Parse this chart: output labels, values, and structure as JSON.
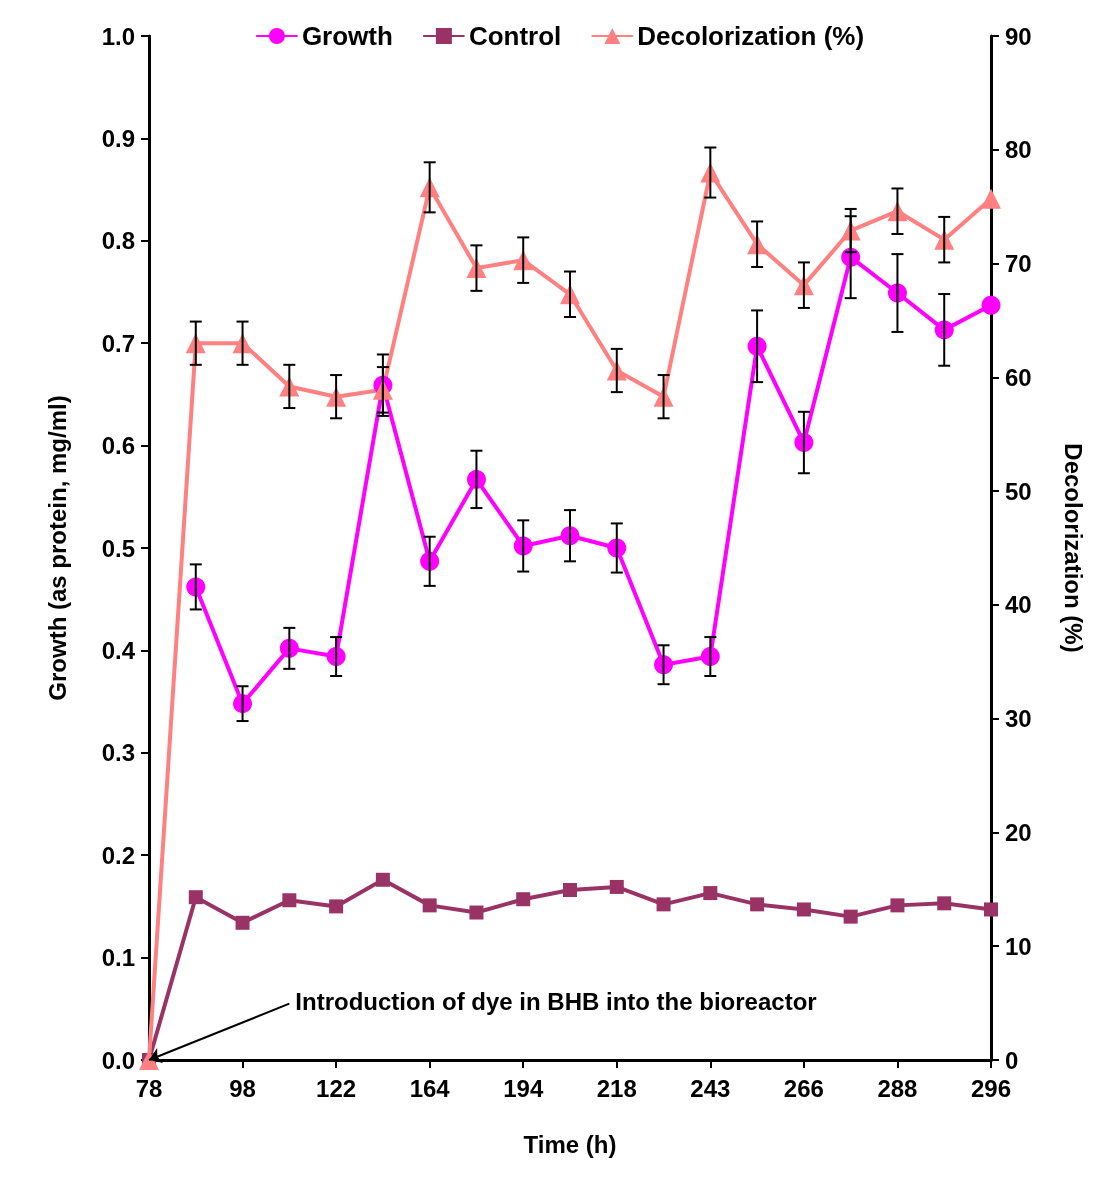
{
  "chart_data": {
    "type": "line",
    "xlabel": "Time (h)",
    "ylabel": "Growth (as protein, mg/ml)",
    "y2label": "Decolorization (%)",
    "categories": [
      "78",
      null,
      "98",
      null,
      "122",
      null,
      "164",
      null,
      "194",
      null,
      "218",
      null,
      "243",
      null,
      "266",
      null,
      "288",
      null,
      "296"
    ],
    "ylim": [
      0,
      1
    ],
    "yticks": [
      {
        "value": 0,
        "label": "0.0"
      },
      {
        "value": 0.1,
        "label": "0.1"
      },
      {
        "value": 0.2,
        "label": "0.2"
      },
      {
        "value": 0.3,
        "label": "0.3"
      },
      {
        "value": 0.4,
        "label": "0.4"
      },
      {
        "value": 0.5,
        "label": "0.5"
      },
      {
        "value": 0.6,
        "label": "0.6"
      },
      {
        "value": 0.7,
        "label": "0.7"
      },
      {
        "value": 0.8,
        "label": "0.8"
      },
      {
        "value": 0.9,
        "label": "0.9"
      },
      {
        "value": 1,
        "label": "1.0"
      }
    ],
    "y2lim": [
      0,
      90
    ],
    "y2ticks": [
      0,
      10,
      20,
      30,
      40,
      50,
      60,
      70,
      80,
      90
    ],
    "grid": false,
    "legend": "top",
    "line_style": "solid",
    "series": [
      {
        "name": "Growth",
        "color": "#ff00ff",
        "marker": "circle",
        "values": [
          null,
          0.462,
          0.348,
          0.402,
          0.394,
          0.659,
          0.487,
          0.567,
          0.502,
          0.512,
          0.5,
          0.386,
          0.394,
          0.697,
          0.603,
          0.784,
          0.749,
          0.713,
          0.737
        ],
        "errors": [
          null,
          0.022,
          0.017,
          0.02,
          0.019,
          0.03,
          0.024,
          0.028,
          0.025,
          0.025,
          0.024,
          0.019,
          0.019,
          0.035,
          0.03,
          0.04,
          0.038,
          0.035,
          null
        ]
      },
      {
        "name": "Control",
        "color": "#993366",
        "marker": "square",
        "values": [
          0,
          0.159,
          0.134,
          0.156,
          0.15,
          0.176,
          0.151,
          0.144,
          0.157,
          0.166,
          0.169,
          0.152,
          0.163,
          0.152,
          0.147,
          0.14,
          0.151,
          0.153,
          0.147
        ]
      },
      {
        "name": "Decolorization (%)",
        "color": "#ff8080",
        "marker": "triangle",
        "axis": "y2",
        "values": [
          0,
          63.0,
          63.0,
          59.2,
          58.3,
          58.9,
          76.7,
          69.6,
          70.3,
          67.3,
          60.6,
          58.3,
          78.0,
          71.7,
          68.1,
          72.9,
          74.6,
          72.1,
          75.7
        ],
        "errors": [
          null,
          1.9,
          1.9,
          1.9,
          1.9,
          2.0,
          2.2,
          2.0,
          2.0,
          2.0,
          1.9,
          1.9,
          2.2,
          2.0,
          2.0,
          1.9,
          2.0,
          2.0,
          null
        ]
      }
    ],
    "annotations": [
      {
        "text": "Introduction of dye in BHB into the bioreactor",
        "x": "78",
        "y": 0
      }
    ]
  }
}
